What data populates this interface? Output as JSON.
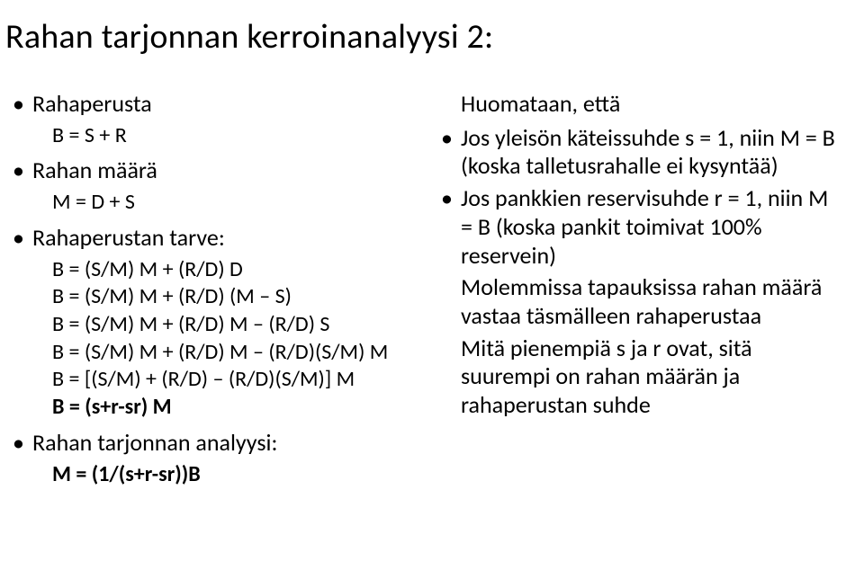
{
  "title": "Rahan tarjonnan kerroinanalyysi 2:",
  "left": {
    "items": [
      {
        "label": "Rahaperusta",
        "sub": [
          "B = S + R"
        ]
      },
      {
        "label": "Rahan määrä",
        "sub": [
          "M = D + S"
        ]
      },
      {
        "label": "Rahaperustan tarve:",
        "sub": [
          "B = (S/M) M + (R/D) D",
          "B = (S/M) M + (R/D) (M – S)",
          "B = (S/M) M + (R/D) M – (R/D) S",
          "B = (S/M) M + (R/D) M – (R/D)(S/M) M",
          "B = [(S/M) + (R/D) – (R/D)(S/M)] M"
        ],
        "sub_bold": "B = (s+r-sr) M"
      },
      {
        "label": "Rahan tarjonnan analyysi:",
        "sub_bold_only": "M = (1/(s+r-sr))B"
      }
    ]
  },
  "right": {
    "lead": "Huomataan, että",
    "items": [
      "Jos yleisön käteissuhde s = 1, niin M = B (koska talletusrahalle ei kysyntää)",
      "Jos pankkien reservisuhde r = 1, niin M = B (koska pankit toimivat 100% reservein)"
    ],
    "tail": [
      "Molemmissa tapauksissa rahan määrä vastaa täsmälleen rahaperustaa",
      "Mitä pienempiä s ja r ovat, sitä suurempi on rahan määrän ja rahaperustan suhde"
    ]
  }
}
